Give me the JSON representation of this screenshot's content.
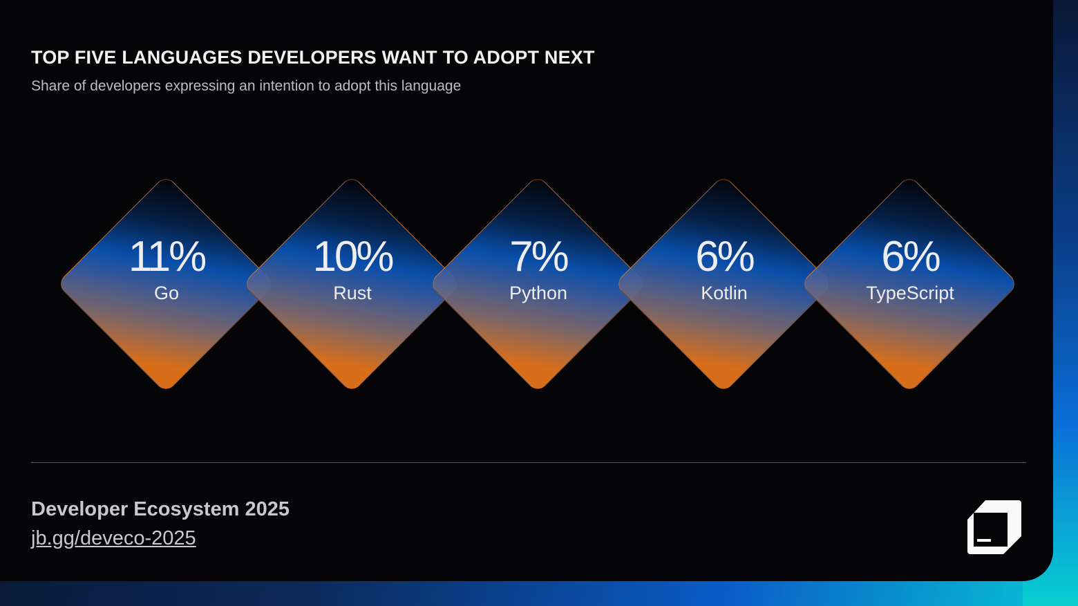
{
  "header": {
    "title": "TOP FIVE LANGUAGES DEVELOPERS WANT TO ADOPT NEXT",
    "subtitle": "Share of developers expressing an intention to adopt this language"
  },
  "chart_data": {
    "type": "other",
    "title": "TOP FIVE LANGUAGES DEVELOPERS WANT TO ADOPT NEXT",
    "subtitle": "Share of developers expressing an intention to adopt this language",
    "categories": [
      "Go",
      "Rust",
      "Python",
      "Kotlin",
      "TypeScript"
    ],
    "values": [
      11,
      10,
      7,
      6,
      6
    ],
    "value_labels": [
      "11%",
      "10%",
      "7%",
      "6%",
      "6%"
    ],
    "colors": {
      "top": "#e8761c",
      "middle": "#0a55b8",
      "bottom": "#030308"
    }
  },
  "footer": {
    "title": "Developer Ecosystem 2025",
    "link": "jb.gg/deveco-2025"
  },
  "logo": {
    "icon": "jetbrains-logo-icon"
  }
}
